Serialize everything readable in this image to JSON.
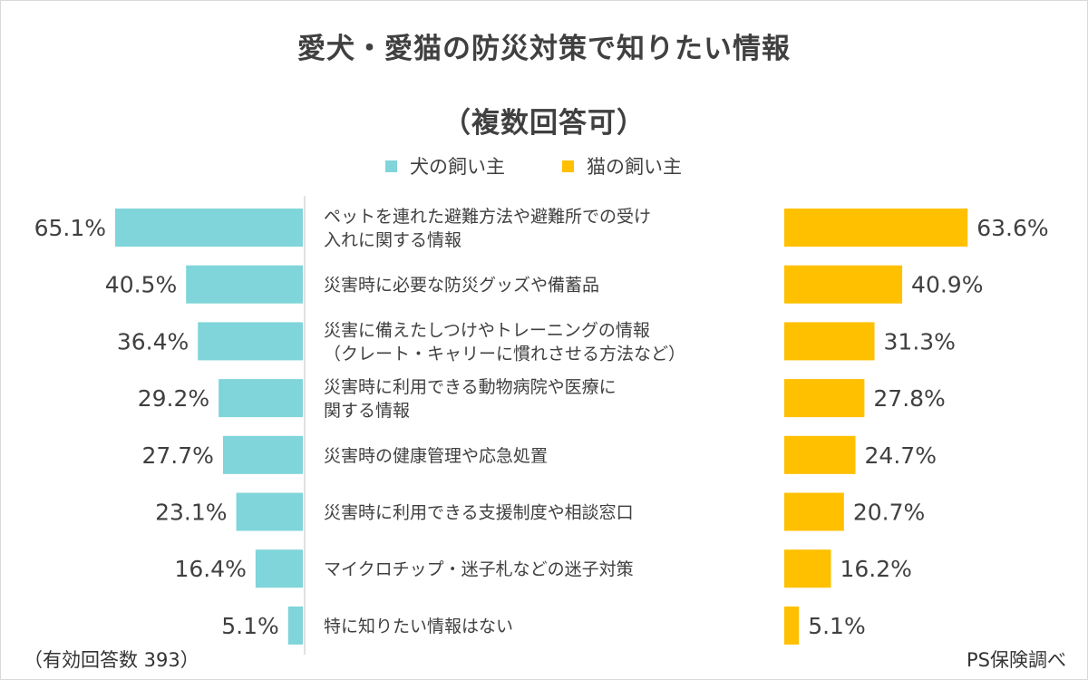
{
  "chart_data": {
    "type": "bar",
    "title": "愛犬・愛猫の防災対策で知りたい情報",
    "subtitle": "（複数回答可）",
    "legend_position": "top",
    "categories": [
      [
        "ペットを連れた避難方法や避難所での受け",
        "入れに関する情報"
      ],
      [
        "災害時に必要な防災グッズや備蓄品"
      ],
      [
        "災害に備えたしつけやトレーニングの情報",
        "（クレート・キャリーに慣れさせる方法など）"
      ],
      [
        "災害時に利用できる動物病院や医療に",
        "関する情報"
      ],
      [
        "災害時の健康管理や応急処置"
      ],
      [
        "災害時に利用できる支援制度や相談窓口"
      ],
      [
        "マイクロチップ・迷子札などの迷子対策"
      ],
      [
        "特に知りたい情報はない"
      ]
    ],
    "series": [
      {
        "name": "犬の飼い主",
        "color": "#7fd5d9",
        "values": [
          65.1,
          40.5,
          36.4,
          29.2,
          27.7,
          23.1,
          16.4,
          5.1
        ],
        "labels": [
          "65.1%",
          "40.5%",
          "36.4%",
          "29.2%",
          "27.7%",
          "23.1%",
          "16.4%",
          "5.1%"
        ]
      },
      {
        "name": "猫の飼い主",
        "color": "#ffc000",
        "values": [
          63.6,
          40.9,
          31.3,
          27.8,
          24.7,
          20.7,
          16.2,
          5.1
        ],
        "labels": [
          "63.6%",
          "40.9%",
          "31.3%",
          "27.8%",
          "24.7%",
          "20.7%",
          "16.2%",
          "5.1%"
        ]
      }
    ],
    "xlim": [
      0,
      65.1
    ],
    "grid": false
  },
  "footer": {
    "sample": "（有効回答数 393）",
    "source": "PS保険調べ"
  }
}
